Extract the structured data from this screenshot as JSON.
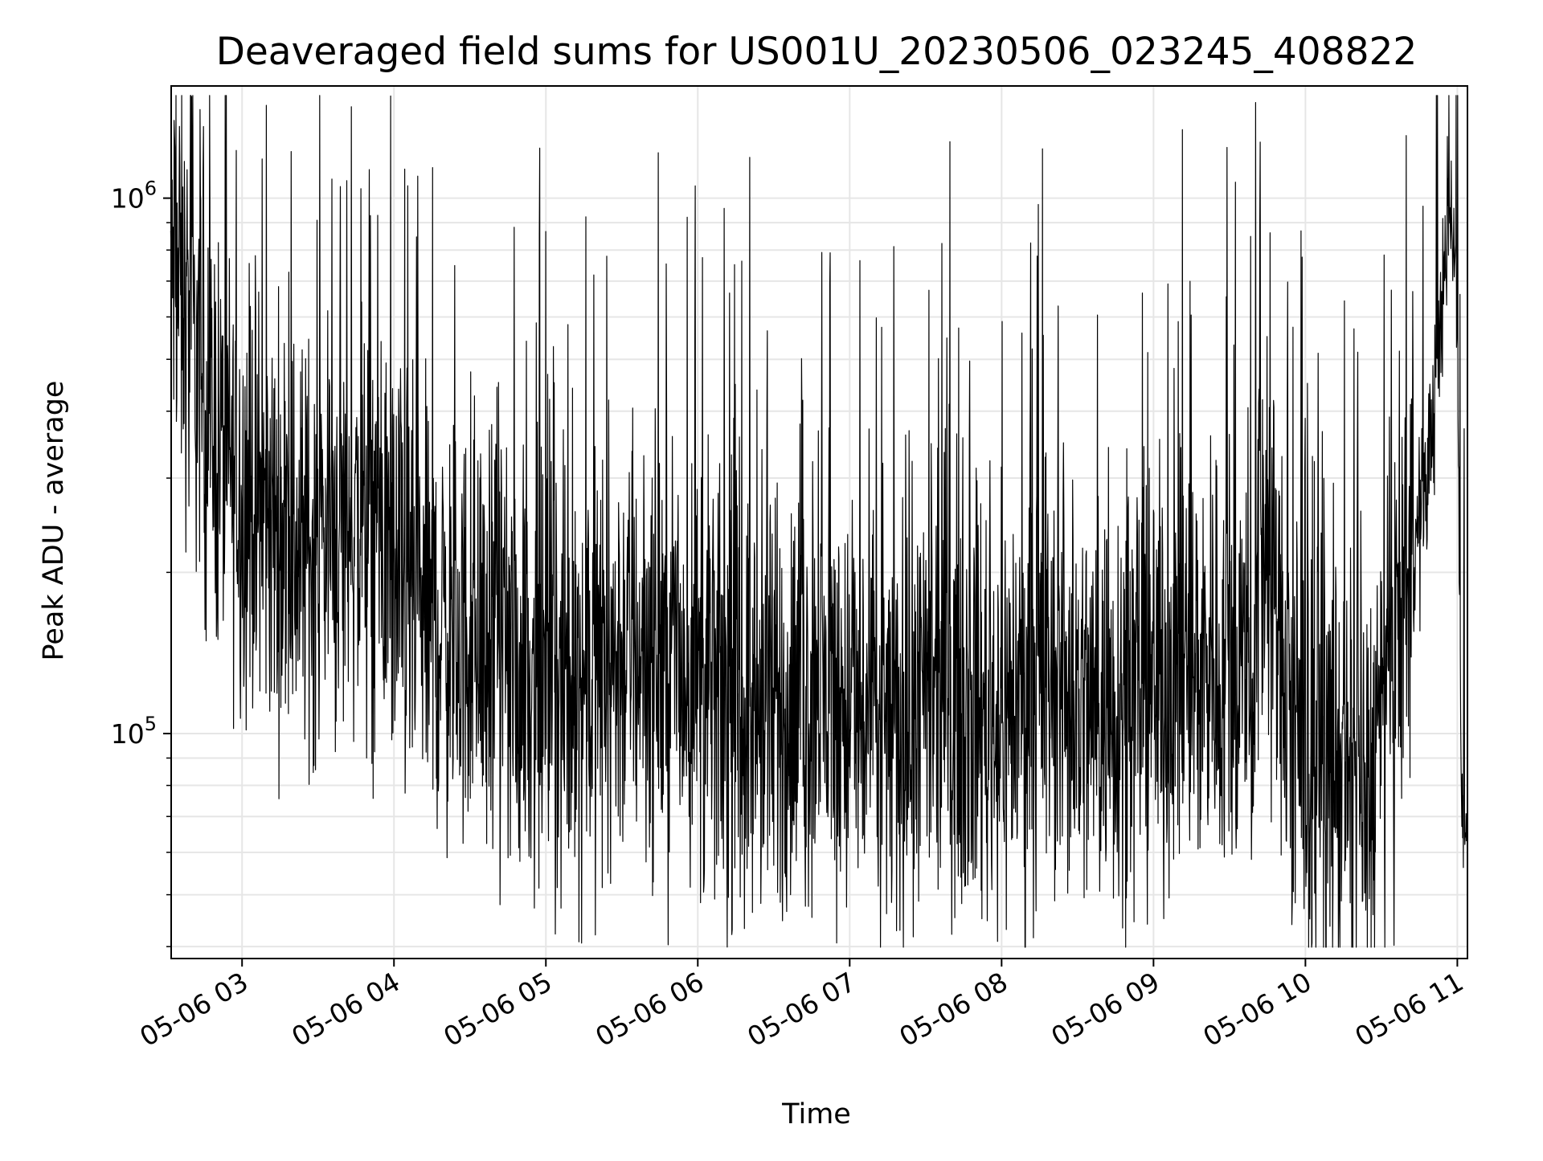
{
  "chart_data": {
    "type": "line",
    "title": "Deaveraged field sums for US001U_20230506_023245_408822",
    "xlabel": "Time",
    "ylabel": "Peak ADU - average",
    "yscale": "log",
    "x_range": [
      "05-06 02:32",
      "05-06 11:04"
    ],
    "ylim": [
      38000,
      1620000
    ],
    "x_ticks": [
      "05-06 03",
      "05-06 04",
      "05-06 05",
      "05-06 06",
      "05-06 07",
      "05-06 08",
      "05-06 09",
      "05-06 10",
      "05-06 11"
    ],
    "y_ticks": [
      {
        "base": "10",
        "exp": "5",
        "value": 100000
      },
      {
        "base": "10",
        "exp": "6",
        "value": 1000000
      }
    ],
    "grid": true,
    "series": [
      {
        "color": "#000000",
        "x_hours": [
          2.53,
          2.6,
          2.7,
          2.8,
          2.9,
          3.0,
          3.1,
          3.2,
          3.3,
          3.4,
          3.5,
          3.6,
          3.7,
          3.8,
          3.9,
          4.0,
          4.1,
          4.2,
          4.3,
          4.4,
          4.5,
          4.6,
          4.7,
          4.8,
          4.9,
          5.0,
          5.1,
          5.2,
          5.3,
          5.4,
          5.5,
          5.6,
          5.7,
          5.8,
          5.9,
          6.0,
          6.1,
          6.2,
          6.3,
          6.4,
          6.5,
          6.6,
          6.7,
          6.8,
          6.9,
          7.0,
          7.1,
          7.2,
          7.3,
          7.4,
          7.5,
          7.6,
          7.7,
          7.8,
          7.9,
          8.0,
          8.1,
          8.2,
          8.3,
          8.4,
          8.5,
          8.6,
          8.7,
          8.8,
          8.9,
          9.0,
          9.1,
          9.2,
          9.3,
          9.4,
          9.5,
          9.6,
          9.66,
          9.7,
          9.8,
          9.9,
          10.0,
          10.1,
          10.2,
          10.3,
          10.4,
          10.5,
          10.6,
          10.7,
          10.8,
          10.9,
          10.95,
          11.0,
          11.03,
          11.06
        ],
        "y_median": [
          800000,
          650000,
          500000,
          380000,
          320000,
          280000,
          260000,
          250000,
          230000,
          220000,
          230000,
          240000,
          250000,
          240000,
          230000,
          200000,
          180000,
          170000,
          160000,
          150000,
          150000,
          140000,
          140000,
          130000,
          130000,
          125000,
          120000,
          125000,
          130000,
          135000,
          140000,
          145000,
          140000,
          135000,
          130000,
          125000,
          120000,
          115000,
          110000,
          105000,
          105000,
          110000,
          115000,
          120000,
          115000,
          110000,
          105000,
          100000,
          100000,
          105000,
          110000,
          115000,
          120000,
          115000,
          110000,
          110000,
          115000,
          120000,
          125000,
          120000,
          115000,
          110000,
          115000,
          120000,
          125000,
          125000,
          130000,
          130000,
          135000,
          135000,
          130000,
          125000,
          120000,
          250000,
          180000,
          95000,
          90000,
          88000,
          85000,
          80000,
          75000,
          100000,
          150000,
          200000,
          300000,
          600000,
          1100000,
          600000,
          65000,
          75000
        ]
      }
    ]
  }
}
